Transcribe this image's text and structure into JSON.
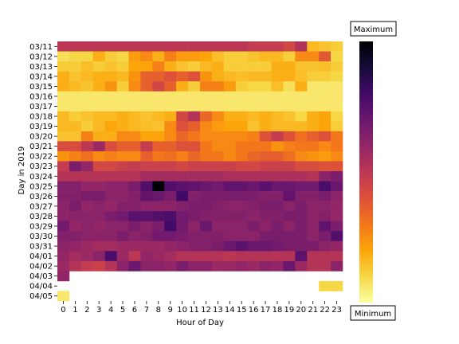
{
  "chart_data": {
    "type": "heatmap",
    "title": "",
    "xlabel": "Hour of Day",
    "ylabel": "Day in 2019",
    "x": [
      0,
      1,
      2,
      3,
      4,
      5,
      6,
      7,
      8,
      9,
      10,
      11,
      12,
      13,
      14,
      15,
      16,
      17,
      18,
      19,
      20,
      21,
      22,
      23
    ],
    "y": [
      "03/11",
      "03/12",
      "03/13",
      "03/14",
      "03/15",
      "03/16",
      "03/17",
      "03/18",
      "03/19",
      "03/20",
      "03/21",
      "03/22",
      "03/23",
      "03/24",
      "03/25",
      "03/26",
      "03/27",
      "03/28",
      "03/29",
      "03/30",
      "03/31",
      "04/01",
      "04/02",
      "04/03",
      "04/04",
      "04/05"
    ],
    "values": [
      [
        0.5,
        0.5,
        0.5,
        0.5,
        0.5,
        0.5,
        0.5,
        0.5,
        0.5,
        0.5,
        0.5,
        0.5,
        0.5,
        0.5,
        0.5,
        0.5,
        0.48,
        0.48,
        0.48,
        0.44,
        0.53,
        0.16,
        0.14,
        0.12
      ],
      [
        0.08,
        0.1,
        0.1,
        0.18,
        0.12,
        0.1,
        0.22,
        0.26,
        0.18,
        0.28,
        0.22,
        0.22,
        0.2,
        0.15,
        0.12,
        0.12,
        0.14,
        0.16,
        0.16,
        0.12,
        0.26,
        0.26,
        0.38,
        0.1
      ],
      [
        0.12,
        0.12,
        0.15,
        0.12,
        0.14,
        0.12,
        0.2,
        0.2,
        0.28,
        0.18,
        0.14,
        0.12,
        0.16,
        0.18,
        0.12,
        0.12,
        0.12,
        0.12,
        0.18,
        0.18,
        0.14,
        0.14,
        0.15,
        0.12
      ],
      [
        0.18,
        0.14,
        0.16,
        0.18,
        0.18,
        0.16,
        0.24,
        0.36,
        0.36,
        0.4,
        0.36,
        0.4,
        0.24,
        0.18,
        0.16,
        0.15,
        0.16,
        0.16,
        0.18,
        0.18,
        0.15,
        0.12,
        0.12,
        0.1
      ],
      [
        0.18,
        0.16,
        0.14,
        0.18,
        0.24,
        0.12,
        0.26,
        0.36,
        0.44,
        0.36,
        0.18,
        0.12,
        0.28,
        0.28,
        0.22,
        0.12,
        0.1,
        0.1,
        0.15,
        0.08,
        0.18,
        0.06,
        0.06,
        0.06
      ],
      [
        0.06,
        0.06,
        0.06,
        0.06,
        0.06,
        0.06,
        0.06,
        0.06,
        0.06,
        0.06,
        0.06,
        0.06,
        0.06,
        0.06,
        0.06,
        0.06,
        0.06,
        0.06,
        0.06,
        0.06,
        0.06,
        0.06,
        0.06,
        0.06
      ],
      [
        0.06,
        0.06,
        0.06,
        0.06,
        0.06,
        0.06,
        0.06,
        0.06,
        0.06,
        0.06,
        0.06,
        0.06,
        0.06,
        0.06,
        0.06,
        0.06,
        0.06,
        0.06,
        0.06,
        0.06,
        0.06,
        0.06,
        0.06,
        0.06
      ],
      [
        0.16,
        0.12,
        0.14,
        0.16,
        0.16,
        0.18,
        0.16,
        0.14,
        0.16,
        0.18,
        0.44,
        0.52,
        0.34,
        0.26,
        0.18,
        0.18,
        0.16,
        0.18,
        0.16,
        0.14,
        0.1,
        0.18,
        0.2,
        0.1
      ],
      [
        0.16,
        0.16,
        0.12,
        0.16,
        0.2,
        0.18,
        0.16,
        0.15,
        0.14,
        0.26,
        0.4,
        0.36,
        0.26,
        0.22,
        0.2,
        0.2,
        0.14,
        0.18,
        0.16,
        0.16,
        0.16,
        0.18,
        0.2,
        0.12
      ],
      [
        0.14,
        0.14,
        0.28,
        0.18,
        0.18,
        0.26,
        0.26,
        0.2,
        0.2,
        0.26,
        0.34,
        0.3,
        0.26,
        0.26,
        0.26,
        0.26,
        0.28,
        0.4,
        0.48,
        0.4,
        0.32,
        0.36,
        0.4,
        0.3
      ],
      [
        0.42,
        0.42,
        0.5,
        0.58,
        0.42,
        0.36,
        0.36,
        0.48,
        0.36,
        0.36,
        0.4,
        0.4,
        0.3,
        0.26,
        0.26,
        0.3,
        0.3,
        0.3,
        0.24,
        0.28,
        0.3,
        0.3,
        0.26,
        0.3
      ],
      [
        0.24,
        0.28,
        0.32,
        0.26,
        0.28,
        0.26,
        0.26,
        0.36,
        0.3,
        0.32,
        0.28,
        0.34,
        0.3,
        0.3,
        0.26,
        0.3,
        0.34,
        0.36,
        0.36,
        0.32,
        0.26,
        0.24,
        0.22,
        0.26
      ],
      [
        0.48,
        0.66,
        0.6,
        0.44,
        0.44,
        0.46,
        0.48,
        0.46,
        0.46,
        0.46,
        0.44,
        0.46,
        0.46,
        0.46,
        0.46,
        0.44,
        0.44,
        0.46,
        0.46,
        0.46,
        0.42,
        0.42,
        0.4,
        0.4
      ],
      [
        0.52,
        0.52,
        0.52,
        0.52,
        0.52,
        0.52,
        0.52,
        0.56,
        0.56,
        0.56,
        0.56,
        0.56,
        0.56,
        0.56,
        0.54,
        0.54,
        0.54,
        0.54,
        0.54,
        0.54,
        0.54,
        0.52,
        0.62,
        0.66
      ],
      [
        0.64,
        0.64,
        0.6,
        0.6,
        0.62,
        0.62,
        0.66,
        0.76,
        1.0,
        0.76,
        0.74,
        0.72,
        0.7,
        0.68,
        0.72,
        0.72,
        0.7,
        0.74,
        0.7,
        0.7,
        0.68,
        0.68,
        0.78,
        0.7
      ],
      [
        0.64,
        0.64,
        0.66,
        0.66,
        0.62,
        0.62,
        0.64,
        0.72,
        0.7,
        0.66,
        0.8,
        0.64,
        0.66,
        0.66,
        0.66,
        0.66,
        0.66,
        0.64,
        0.64,
        0.72,
        0.64,
        0.64,
        0.66,
        0.62
      ],
      [
        0.62,
        0.66,
        0.6,
        0.62,
        0.6,
        0.64,
        0.64,
        0.62,
        0.62,
        0.62,
        0.64,
        0.66,
        0.66,
        0.64,
        0.62,
        0.62,
        0.64,
        0.66,
        0.66,
        0.62,
        0.66,
        0.62,
        0.62,
        0.6
      ],
      [
        0.62,
        0.62,
        0.62,
        0.62,
        0.66,
        0.68,
        0.74,
        0.74,
        0.76,
        0.78,
        0.68,
        0.66,
        0.64,
        0.64,
        0.64,
        0.64,
        0.62,
        0.64,
        0.64,
        0.66,
        0.66,
        0.62,
        0.64,
        0.6
      ],
      [
        0.68,
        0.6,
        0.62,
        0.6,
        0.62,
        0.62,
        0.66,
        0.62,
        0.66,
        0.8,
        0.68,
        0.62,
        0.7,
        0.62,
        0.62,
        0.62,
        0.66,
        0.62,
        0.66,
        0.62,
        0.66,
        0.62,
        0.72,
        0.66
      ],
      [
        0.64,
        0.64,
        0.62,
        0.62,
        0.62,
        0.66,
        0.62,
        0.64,
        0.68,
        0.68,
        0.66,
        0.64,
        0.64,
        0.64,
        0.62,
        0.62,
        0.62,
        0.66,
        0.66,
        0.66,
        0.66,
        0.62,
        0.66,
        0.76
      ],
      [
        0.62,
        0.6,
        0.58,
        0.56,
        0.56,
        0.58,
        0.58,
        0.58,
        0.58,
        0.6,
        0.62,
        0.64,
        0.64,
        0.66,
        0.7,
        0.74,
        0.7,
        0.7,
        0.68,
        0.66,
        0.66,
        0.66,
        0.62,
        0.6
      ],
      [
        0.6,
        0.56,
        0.58,
        0.62,
        0.78,
        0.58,
        0.5,
        0.6,
        0.58,
        0.56,
        0.52,
        0.52,
        0.52,
        0.52,
        0.5,
        0.52,
        0.52,
        0.52,
        0.52,
        0.52,
        0.74,
        0.52,
        0.52,
        0.52
      ],
      [
        0.58,
        0.52,
        0.48,
        0.46,
        0.52,
        0.62,
        0.7,
        0.62,
        0.62,
        0.6,
        0.66,
        0.62,
        0.62,
        0.58,
        0.58,
        0.6,
        0.58,
        0.62,
        0.6,
        0.7,
        0.58,
        0.52,
        0.52,
        0.62
      ],
      [
        0.6,
        null,
        null,
        null,
        null,
        null,
        null,
        null,
        null,
        null,
        null,
        null,
        null,
        null,
        null,
        null,
        null,
        null,
        null,
        null,
        null,
        null,
        null,
        null
      ],
      [
        null,
        null,
        null,
        null,
        null,
        null,
        null,
        null,
        null,
        null,
        null,
        null,
        null,
        null,
        null,
        null,
        null,
        null,
        null,
        null,
        null,
        null,
        0.1,
        0.1
      ],
      [
        0.06,
        null,
        null,
        null,
        null,
        null,
        null,
        null,
        null,
        null,
        null,
        null,
        null,
        null,
        null,
        null,
        null,
        null,
        null,
        null,
        null,
        null,
        null,
        null
      ]
    ],
    "colorbar": {
      "colormap": "inferno_r",
      "max_label": "Maximum",
      "min_label": "Minimum"
    },
    "grid": false
  }
}
